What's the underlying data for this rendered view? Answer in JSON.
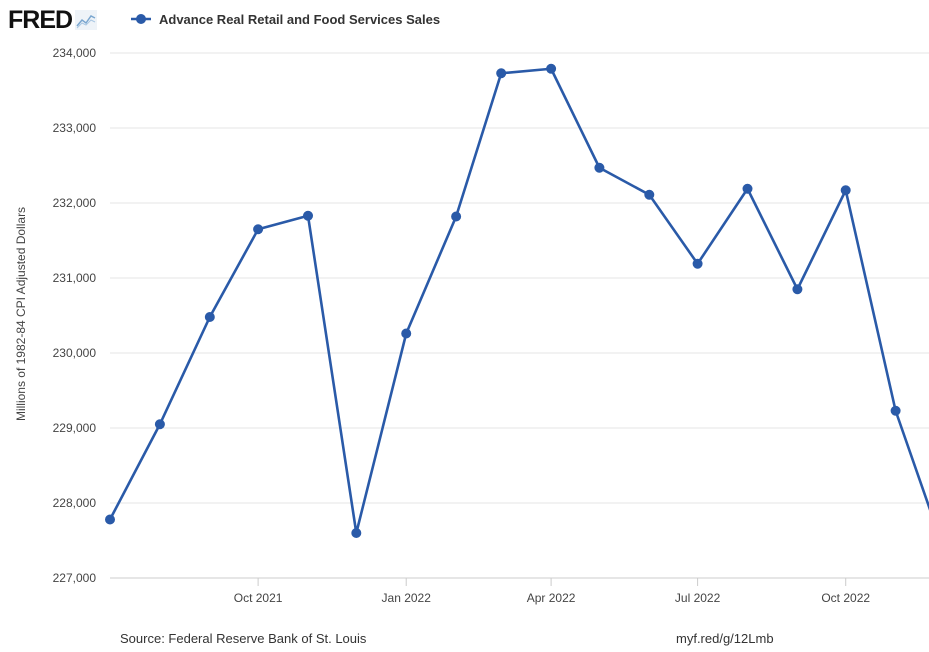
{
  "header": {
    "logo_text": "FRED",
    "logo_icon": "line-chart-icon"
  },
  "legend": {
    "label": "Advance Real Retail and Food Services Sales",
    "marker_color": "#2a5aa8"
  },
  "footer": {
    "source": "Source: Federal Reserve Bank of St. Louis",
    "link": "myf.red/g/12Lmb"
  },
  "chart_data": {
    "type": "line",
    "title": "",
    "ylabel": "Millions of 1982-84 CPI Adjusted Dollars",
    "xlabel": "",
    "ylim": [
      227000,
      234000
    ],
    "yticks": [
      227000,
      228000,
      229000,
      230000,
      231000,
      232000,
      233000,
      234000
    ],
    "ytick_labels": [
      "227,000",
      "228,000",
      "229,000",
      "230,000",
      "231,000",
      "232,000",
      "233,000",
      "234,000"
    ],
    "xlim": [
      "2021-07-01",
      "2022-12-01"
    ],
    "xticks": [
      "2021-10-01",
      "2022-01-01",
      "2022-04-01",
      "2022-07-01",
      "2022-10-01"
    ],
    "xtick_labels": [
      "Oct 2021",
      "Jan 2022",
      "Apr 2022",
      "Jul 2022",
      "Oct 2022"
    ],
    "grid": true,
    "color": "#2a5aa8",
    "series": [
      {
        "name": "Advance Real Retail and Food Services Sales",
        "x": [
          "2021-07-01",
          "2021-08-01",
          "2021-09-01",
          "2021-10-01",
          "2021-11-01",
          "2021-12-01",
          "2022-01-01",
          "2022-02-01",
          "2022-03-01",
          "2022-04-01",
          "2022-05-01",
          "2022-06-01",
          "2022-07-01",
          "2022-08-01",
          "2022-09-01",
          "2022-10-01",
          "2022-11-01",
          "2022-12-01"
        ],
        "values": [
          227780,
          229050,
          230480,
          231650,
          231830,
          227600,
          230260,
          231820,
          233730,
          233790,
          232470,
          232110,
          231190,
          232190,
          230850,
          232170,
          229230,
          227380
        ]
      }
    ]
  }
}
